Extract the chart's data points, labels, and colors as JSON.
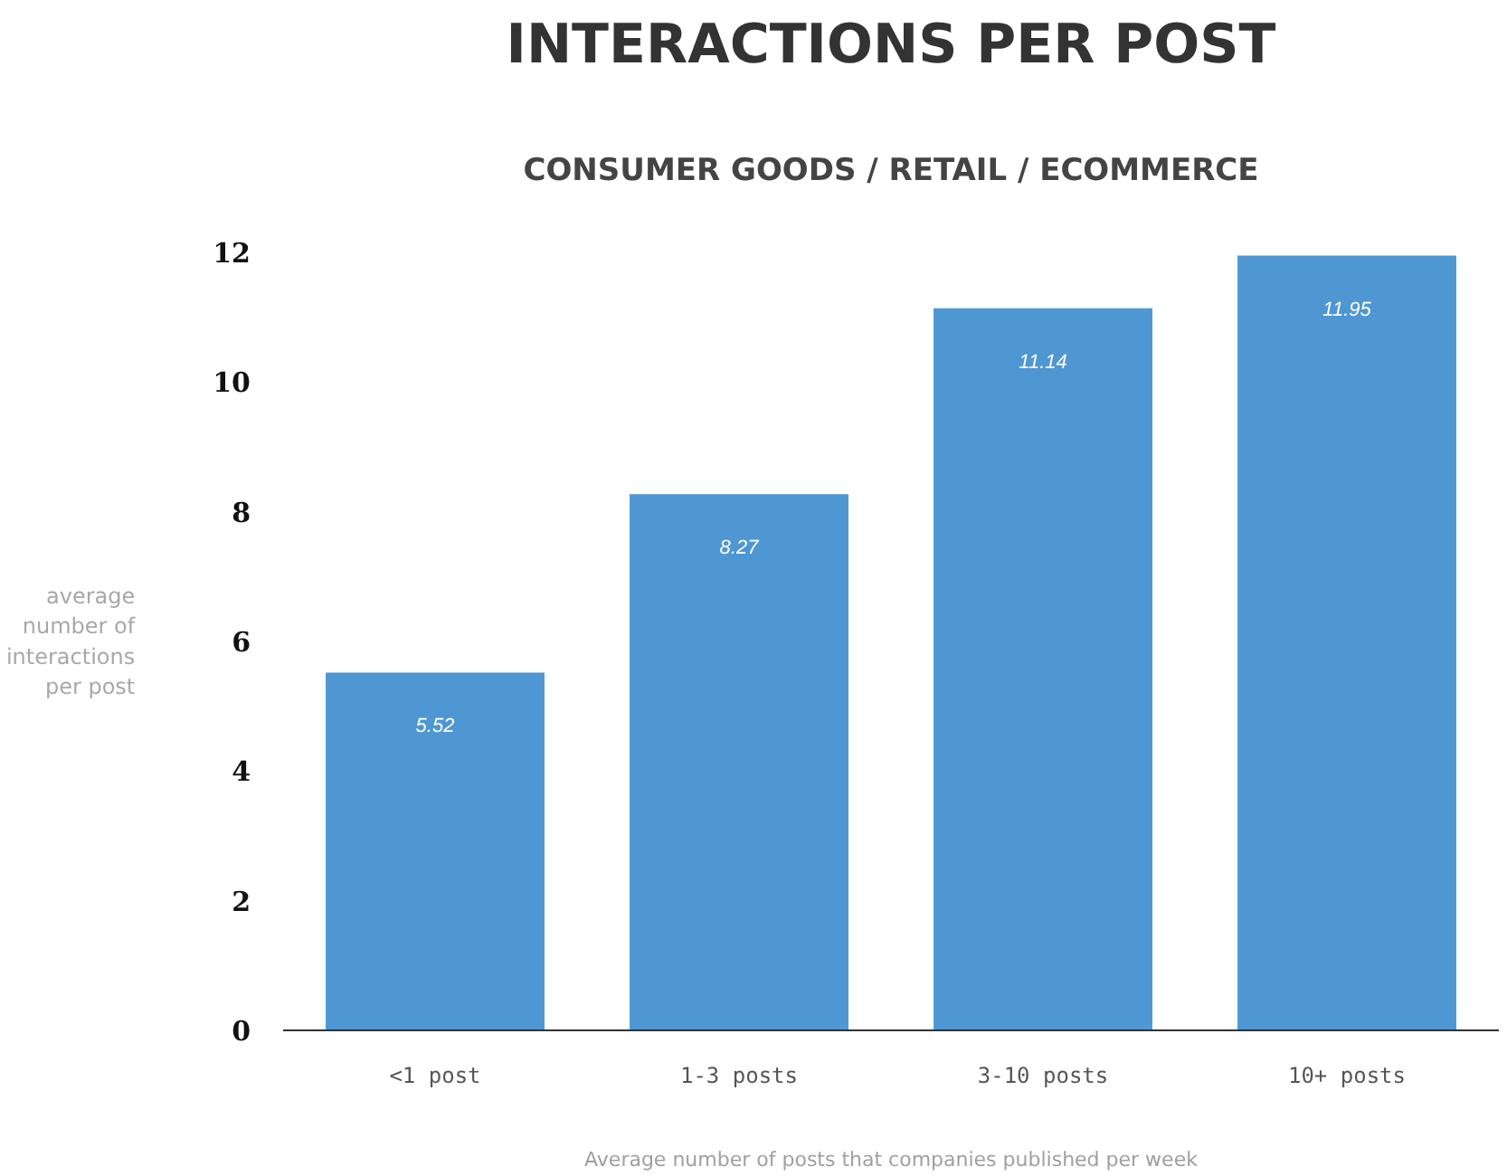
{
  "chart_data": {
    "type": "bar",
    "title": "INTERACTIONS PER POST",
    "subtitle": "CONSUMER GOODS / RETAIL / ECOMMERCE",
    "xlabel": "Average number of posts that companies published per week",
    "ylabel": "average number of interactions per post",
    "categories": [
      "<1 post",
      "1-3 posts",
      "3-10 posts",
      "10+ posts"
    ],
    "values": [
      5.52,
      8.27,
      11.14,
      11.95
    ],
    "color": "#4f97d3",
    "ylim": [
      0,
      12
    ],
    "yticks": [
      0,
      2,
      4,
      6,
      8,
      10,
      12
    ],
    "grid": false,
    "data_labels": true
  }
}
